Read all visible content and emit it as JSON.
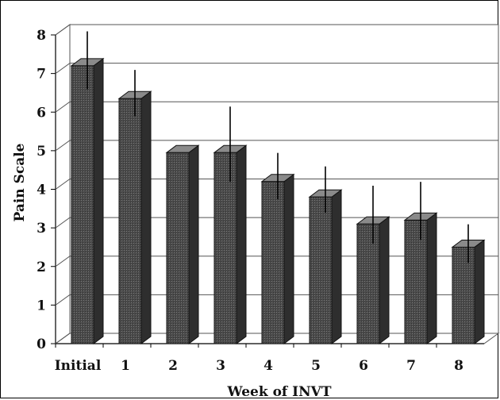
{
  "chart_data": {
    "type": "bar",
    "title": "",
    "xlabel": "Week of INVT",
    "ylabel": "Pain Scale",
    "categories": [
      "Initial",
      "1",
      "2",
      "3",
      "4",
      "5",
      "6",
      "7",
      "8"
    ],
    "values": [
      7.2,
      6.35,
      4.95,
      4.95,
      4.2,
      3.8,
      3.1,
      3.2,
      2.5
    ],
    "error_low": [
      6.5,
      5.8,
      4.95,
      4.1,
      3.65,
      3.3,
      2.5,
      2.6,
      2.0
    ],
    "error_high": [
      8.0,
      7.0,
      4.95,
      6.05,
      4.85,
      4.5,
      4.0,
      4.1,
      3.0
    ],
    "ylim": [
      0,
      8
    ],
    "yticks": [
      "0",
      "1",
      "2",
      "3",
      "4",
      "5",
      "6",
      "7",
      "8"
    ],
    "grid": true,
    "bar_color": "#555555"
  }
}
